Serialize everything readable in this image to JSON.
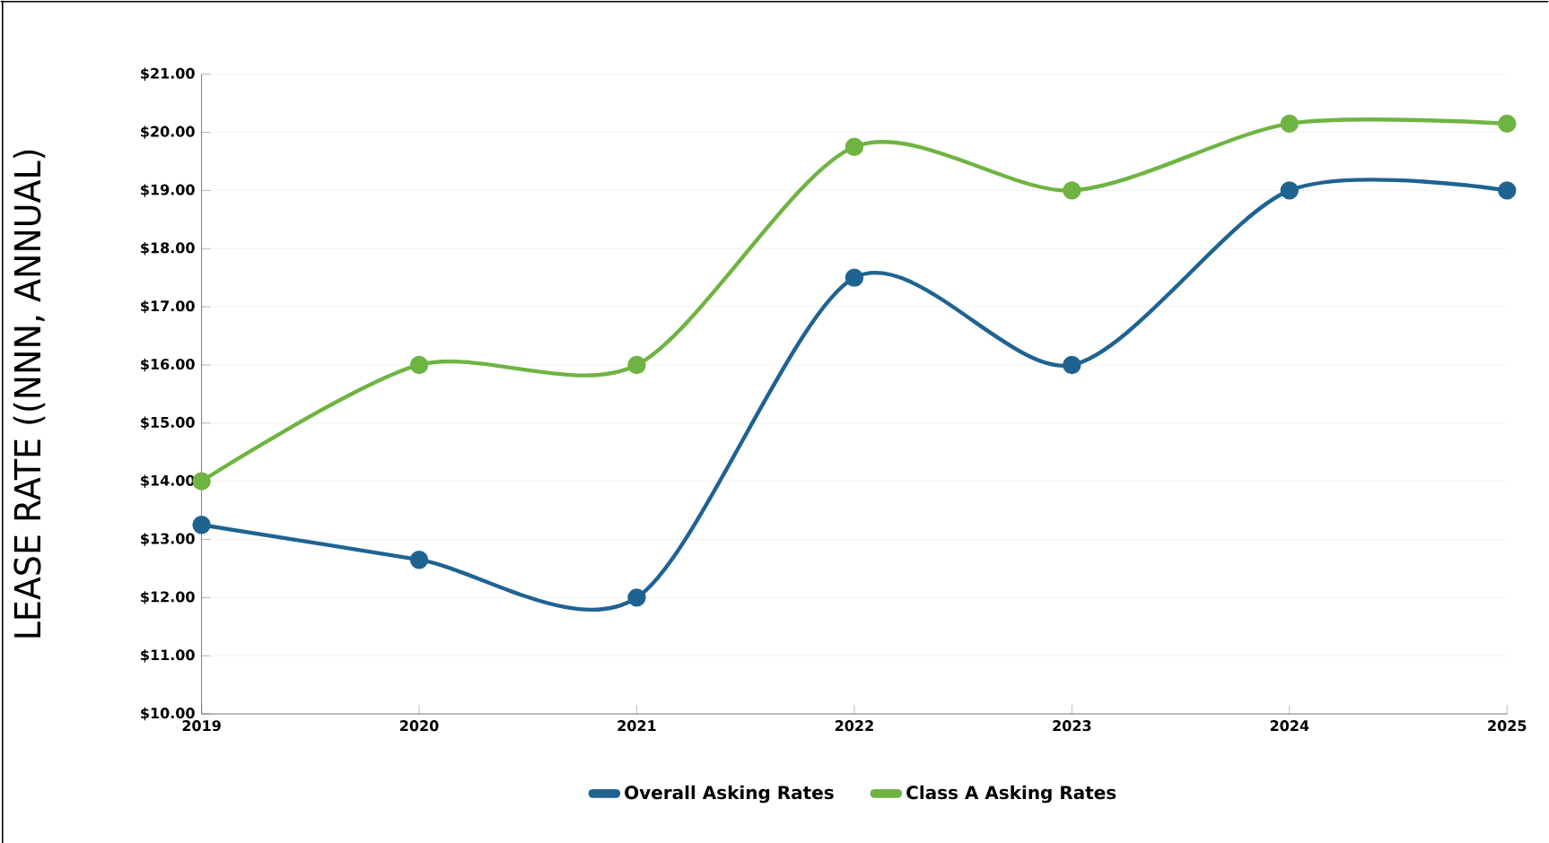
{
  "chart_data": {
    "type": "line",
    "ylabel": "LEASE RATE ((NNN, ANNUAL)",
    "x": [
      2019,
      2020,
      2021,
      2022,
      2023,
      2024,
      2025
    ],
    "xlim": [
      2019,
      2025
    ],
    "xticks": [
      2019,
      2020,
      2021,
      2022,
      2023,
      2024,
      2025
    ],
    "ylim": [
      10,
      21
    ],
    "yticks": [
      {
        "value": 10,
        "label": "$10.00"
      },
      {
        "value": 11,
        "label": "$11.00"
      },
      {
        "value": 12,
        "label": "$12.00"
      },
      {
        "value": 13,
        "label": "$13.00"
      },
      {
        "value": 14,
        "label": "$14.00"
      },
      {
        "value": 15,
        "label": "$15.00"
      },
      {
        "value": 16,
        "label": "$16.00"
      },
      {
        "value": 17,
        "label": "$17.00"
      },
      {
        "value": 18,
        "label": "$18.00"
      },
      {
        "value": 19,
        "label": "$19.00"
      },
      {
        "value": 20,
        "label": "$20.00"
      },
      {
        "value": 21,
        "label": "$21.00"
      }
    ],
    "series": [
      {
        "name": "Overall Asking Rates",
        "color": "#1f6391",
        "values": [
          13.25,
          12.65,
          12.0,
          17.5,
          16.0,
          19.0,
          19.0
        ]
      },
      {
        "name": "Class A Asking Rates",
        "color": "#6fb443",
        "values": [
          14.0,
          16.0,
          16.0,
          19.75,
          19.0,
          20.15,
          20.15
        ]
      }
    ],
    "grid": "y",
    "legend": "bottom",
    "marker": "circle",
    "line_style": "solid"
  }
}
